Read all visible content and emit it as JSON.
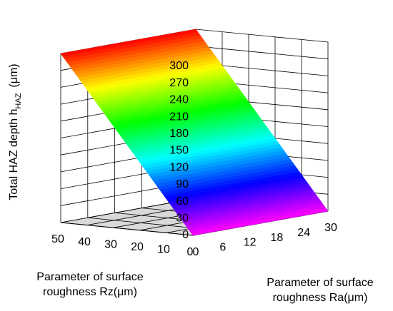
{
  "chart_data": {
    "type": "surface3d",
    "zlabel_main": "Total HAZ depth h",
    "zlabel_sub": "HAZ",
    "zlabel_unit": "(μm)",
    "xlabel_lines": [
      "Parameter of surface",
      "roughness  Rz(μm)"
    ],
    "ylabel_lines": [
      "Parameter of surface",
      "roughness  Ra(μm)"
    ],
    "x_axis": {
      "name": "Rz",
      "ticks": [
        0,
        10,
        20,
        30,
        40,
        50
      ],
      "tick_labels": [
        "0",
        "10",
        "20",
        "30",
        "40",
        "50"
      ],
      "range": [
        0,
        50
      ]
    },
    "y_axis": {
      "name": "Ra",
      "ticks": [
        0,
        6,
        12,
        18,
        24,
        30
      ],
      "tick_labels": [
        "0",
        "6",
        "12",
        "18",
        "24",
        "30"
      ],
      "range": [
        0,
        30
      ]
    },
    "z_axis": {
      "name": "h_HAZ",
      "ticks": [
        0,
        30,
        60,
        90,
        120,
        150,
        180,
        210,
        240,
        270,
        300
      ],
      "tick_labels": [
        "0",
        "30",
        "60",
        "90",
        "120",
        "150",
        "180",
        "210",
        "240",
        "270",
        "300"
      ],
      "range": [
        0,
        300
      ]
    },
    "surface": {
      "rz_values": [
        0,
        10,
        20,
        30,
        40,
        50
      ],
      "ra_values": [
        0,
        6,
        12,
        18,
        24,
        30
      ],
      "z_at_rz": [
        0,
        60,
        120,
        180,
        240,
        300
      ],
      "z_ra_effect_at_max": 0
    },
    "colormap": [
      "#ff00ff",
      "#0000ff",
      "#00ffff",
      "#00ff00",
      "#ffff00",
      "#ff0000"
    ],
    "grid": true
  }
}
